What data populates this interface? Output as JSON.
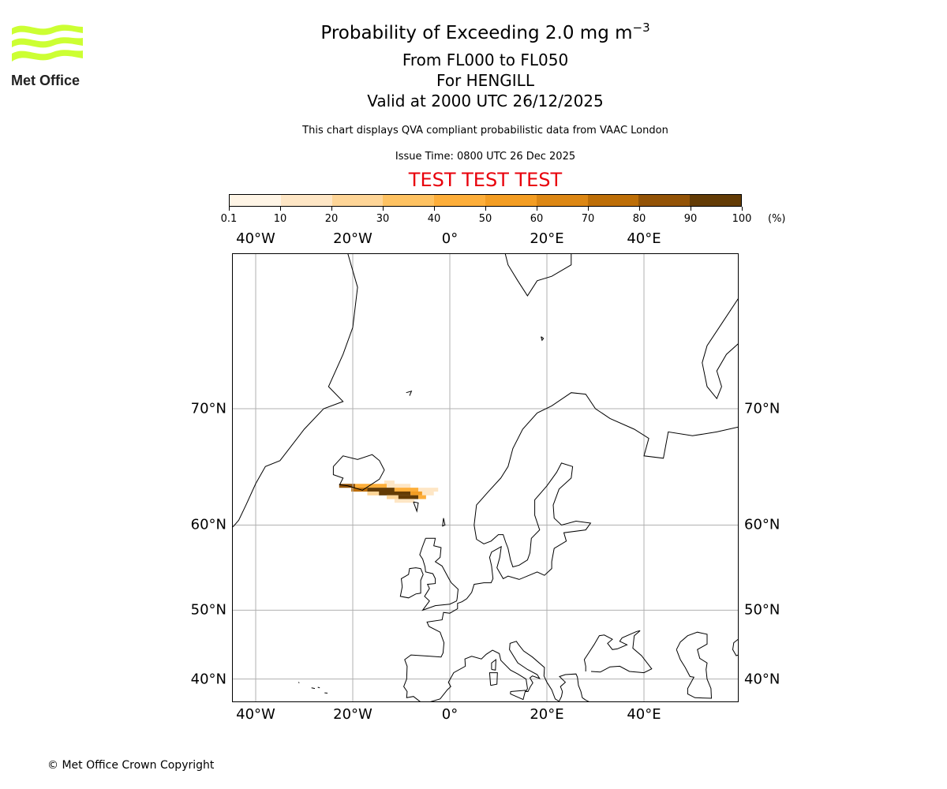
{
  "logo": {
    "text": "Met Office",
    "color": "#ccff33"
  },
  "header": {
    "title": "Probability of Exceeding 2.0 mg m",
    "title_superscript": "−3",
    "level_range": "From FL000 to FL050",
    "volcano": "For HENGILL",
    "valid_time": "Valid at 2000 UTC 26/12/2025",
    "description": "This chart displays QVA compliant probabilistic data from VAAC London",
    "issue_time": "Issue Time: 0800 UTC 26 Dec 2025",
    "test_banner": "TEST TEST TEST"
  },
  "footer": {
    "copyright": "© Met Office Crown Copyright"
  },
  "chart_data": {
    "type": "heatmap",
    "title": "Probability of Exceeding 2.0 mg m-3",
    "projection": "mercator",
    "extent": {
      "lon": [
        -44.7,
        59.6
      ],
      "lat": [
        36.3,
        78.5
      ]
    },
    "grid": true,
    "lon_ticks": [
      {
        "value": -40,
        "label": "40°W"
      },
      {
        "value": -20,
        "label": "20°W"
      },
      {
        "value": 0,
        "label": "0°"
      },
      {
        "value": 20,
        "label": "20°E"
      },
      {
        "value": 40,
        "label": "40°E"
      }
    ],
    "lat_ticks": [
      {
        "value": 70,
        "label": "70°N"
      },
      {
        "value": 60,
        "label": "60°N"
      },
      {
        "value": 50,
        "label": "50°N"
      },
      {
        "value": 40,
        "label": "40°N"
      }
    ],
    "colorbar": {
      "boundaries": [
        "0.1",
        "10",
        "20",
        "30",
        "40",
        "50",
        "60",
        "70",
        "80",
        "90",
        "100"
      ],
      "unit": "(%)",
      "colors": [
        "#fff5e6",
        "#fee6c5",
        "#fed597",
        "#fec262",
        "#fdae3a",
        "#f39d23",
        "#dc8714",
        "#bd6e07",
        "#935306",
        "#633b05"
      ]
    },
    "plume_segments": [
      {
        "lat": 64.1,
        "lon_from": -13.5,
        "lon_to": -11.4,
        "prob": 15
      },
      {
        "lat": 63.8,
        "lon_from": -22.8,
        "lon_to": -19.5,
        "prob": 85
      },
      {
        "lat": 63.8,
        "lon_from": -19.5,
        "lon_to": -13.0,
        "prob": 40
      },
      {
        "lat": 63.8,
        "lon_from": -13.0,
        "lon_to": -8.1,
        "prob": 15
      },
      {
        "lat": 63.45,
        "lon_from": -20.3,
        "lon_to": -17.0,
        "prob": 75
      },
      {
        "lat": 63.45,
        "lon_from": -17.0,
        "lon_to": -11.4,
        "prob": 92
      },
      {
        "lat": 63.45,
        "lon_from": -11.4,
        "lon_to": -6.5,
        "prob": 45
      },
      {
        "lat": 63.45,
        "lon_from": -6.5,
        "lon_to": -2.4,
        "prob": 10
      },
      {
        "lat": 63.1,
        "lon_from": -17.0,
        "lon_to": -14.6,
        "prob": 25
      },
      {
        "lat": 63.1,
        "lon_from": -14.6,
        "lon_to": -8.1,
        "prob": 95
      },
      {
        "lat": 63.1,
        "lon_from": -8.1,
        "lon_to": -5.7,
        "prob": 55
      },
      {
        "lat": 63.1,
        "lon_from": -5.7,
        "lon_to": -3.3,
        "prob": 15
      },
      {
        "lat": 62.75,
        "lon_from": -13.0,
        "lon_to": -10.6,
        "prob": 20
      },
      {
        "lat": 62.75,
        "lon_from": -10.6,
        "lon_to": -6.5,
        "prob": 90
      },
      {
        "lat": 62.75,
        "lon_from": -6.5,
        "lon_to": -4.9,
        "prob": 40
      },
      {
        "lat": 62.4,
        "lon_from": -11.4,
        "lon_to": -7.3,
        "prob": 10
      }
    ]
  }
}
